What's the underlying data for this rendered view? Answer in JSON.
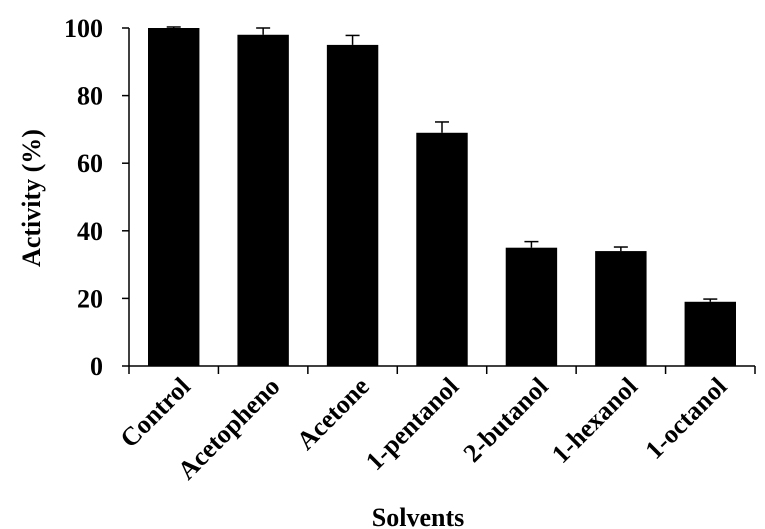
{
  "chart_data": {
    "type": "bar",
    "categories": [
      "Control",
      "Acetopheno",
      "Acetone",
      "1-pentanol",
      "2-butanol",
      "1-hexanol",
      "1-octanol"
    ],
    "values": [
      100,
      98,
      95,
      69,
      35,
      34,
      19
    ],
    "errors": [
      0.3,
      2,
      2.8,
      3.2,
      1.8,
      1.2,
      0.8
    ],
    "title": "",
    "xlabel": "Solvents",
    "ylabel": "Activity (%)",
    "ylim": [
      0,
      100
    ],
    "yticks": [
      0,
      20,
      40,
      60,
      80,
      100
    ],
    "bar_color": "#000000",
    "grid": false
  }
}
